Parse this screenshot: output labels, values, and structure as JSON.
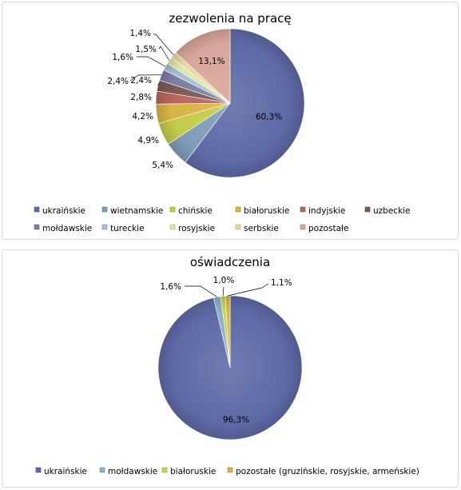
{
  "chart_data": [
    {
      "type": "pie",
      "title": "zezwolenia na pracę",
      "series": [
        {
          "values": [
            60.3,
            5.4,
            4.9,
            4.2,
            2.8,
            2.4,
            2.4,
            1.6,
            1.5,
            1.4,
            13.1
          ],
          "labels": [
            "60,3%",
            "5,4%",
            "4,9%",
            "4,2%",
            "2,8%",
            "2,4%",
            "2,4%",
            "1,6%",
            "1,5%",
            "1,4%",
            "13,1%"
          ]
        }
      ],
      "categories": [
        "ukraińskie",
        "wietnamskie",
        "chińskie",
        "białoruskie",
        "indyjskie",
        "uzbeckie",
        "mołdawskie",
        "tureckie",
        "rosyjskie",
        "serbskie",
        "pozostałe"
      ],
      "colors": [
        "#5e6aa6",
        "#7f9cb7",
        "#c3cb4a",
        "#d9b445",
        "#b5665a",
        "#7a5a54",
        "#7c7fa1",
        "#a9bfd2",
        "#dfe6a8",
        "#e6d99f",
        "#d9a69a"
      ],
      "legend": "bottom"
    },
    {
      "type": "pie",
      "title": "oświadczenia",
      "series": [
        {
          "values": [
            96.3,
            1.6,
            1.0,
            1.1
          ],
          "labels": [
            "96,3%",
            "1,6%",
            "1,0%",
            "1,1%"
          ]
        }
      ],
      "categories": [
        "ukraińskie",
        "mołdawskie",
        "białoruskie",
        "pozostałe (gruzińskie, rosyjskie, armeńskie)"
      ],
      "colors": [
        "#5e6aa6",
        "#8fb0c6",
        "#c9d34f",
        "#d9b445"
      ],
      "legend": "bottom"
    }
  ]
}
